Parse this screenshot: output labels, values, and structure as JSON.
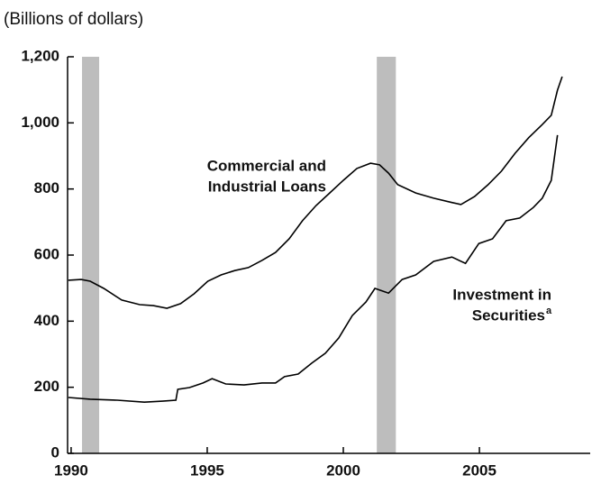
{
  "chart_data": {
    "type": "line",
    "subtitle": "(Billions of dollars)",
    "xlim": [
      1989.87,
      2009.07
    ],
    "xticks": [
      1990,
      1995,
      2000,
      2005
    ],
    "ylim": [
      0,
      1200
    ],
    "yticks": [
      0,
      200,
      400,
      600,
      800,
      {
        "value": 1000,
        "label": "1,000"
      },
      {
        "value": 1200,
        "label": "1,200"
      }
    ],
    "recessions": [
      [
        1990.4,
        1991.03
      ],
      [
        2001.23,
        2001.93
      ]
    ],
    "recession_color": "#bdbdbd",
    "series": [
      {
        "label_lines": [
          "Commercial and",
          "Industrial Loans"
        ],
        "color": "#000000",
        "x": [
          1989.9,
          1990.37,
          1990.7,
          1991.2,
          1991.86,
          1992.52,
          1993.02,
          1993.52,
          1994.02,
          1994.52,
          1995.02,
          1995.51,
          1996.01,
          1996.51,
          1997.01,
          1997.51,
          1998.01,
          1998.5,
          1999.0,
          1999.5,
          2000.0,
          2000.5,
          2001.0,
          2001.33,
          2001.66,
          2002.0,
          2002.66,
          2003.32,
          2003.99,
          2004.32,
          2004.82,
          2005.32,
          2005.81,
          2006.31,
          2006.81,
          2007.31,
          2007.64,
          2007.87,
          2008.04
        ],
        "values": [
          524,
          526,
          521,
          499,
          464,
          450,
          447,
          439,
          453,
          483,
          521,
          540,
          553,
          562,
          584,
          608,
          649,
          704,
          750,
          788,
          826,
          862,
          878,
          873,
          848,
          813,
          788,
          772,
          759,
          753,
          777,
          813,
          854,
          908,
          955,
          995,
          1023,
          1099,
          1140
        ]
      },
      {
        "label_lines": [
          "Investment in",
          "Securities"
        ],
        "note_mark": "a",
        "color": "#000000",
        "x": [
          1989.9,
          1990.7,
          1991.69,
          1992.69,
          1993.36,
          1993.85,
          1993.92,
          1994.35,
          1994.85,
          1995.18,
          1995.68,
          1996.35,
          1997.01,
          1997.51,
          1997.84,
          1998.34,
          1998.84,
          1999.34,
          1999.83,
          2000.33,
          2000.83,
          2001.16,
          2001.66,
          2002.16,
          2002.66,
          2003.32,
          2003.99,
          2004.49,
          2004.98,
          2005.48,
          2005.98,
          2006.48,
          2006.98,
          2007.31,
          2007.64,
          2007.87
        ],
        "values": [
          169,
          164,
          161,
          155,
          158,
          161,
          194,
          199,
          213,
          226,
          210,
          207,
          213,
          213,
          232,
          240,
          273,
          303,
          349,
          417,
          458,
          499,
          485,
          526,
          540,
          581,
          594,
          575,
          635,
          649,
          704,
          712,
          744,
          772,
          826,
          963
        ]
      }
    ]
  }
}
